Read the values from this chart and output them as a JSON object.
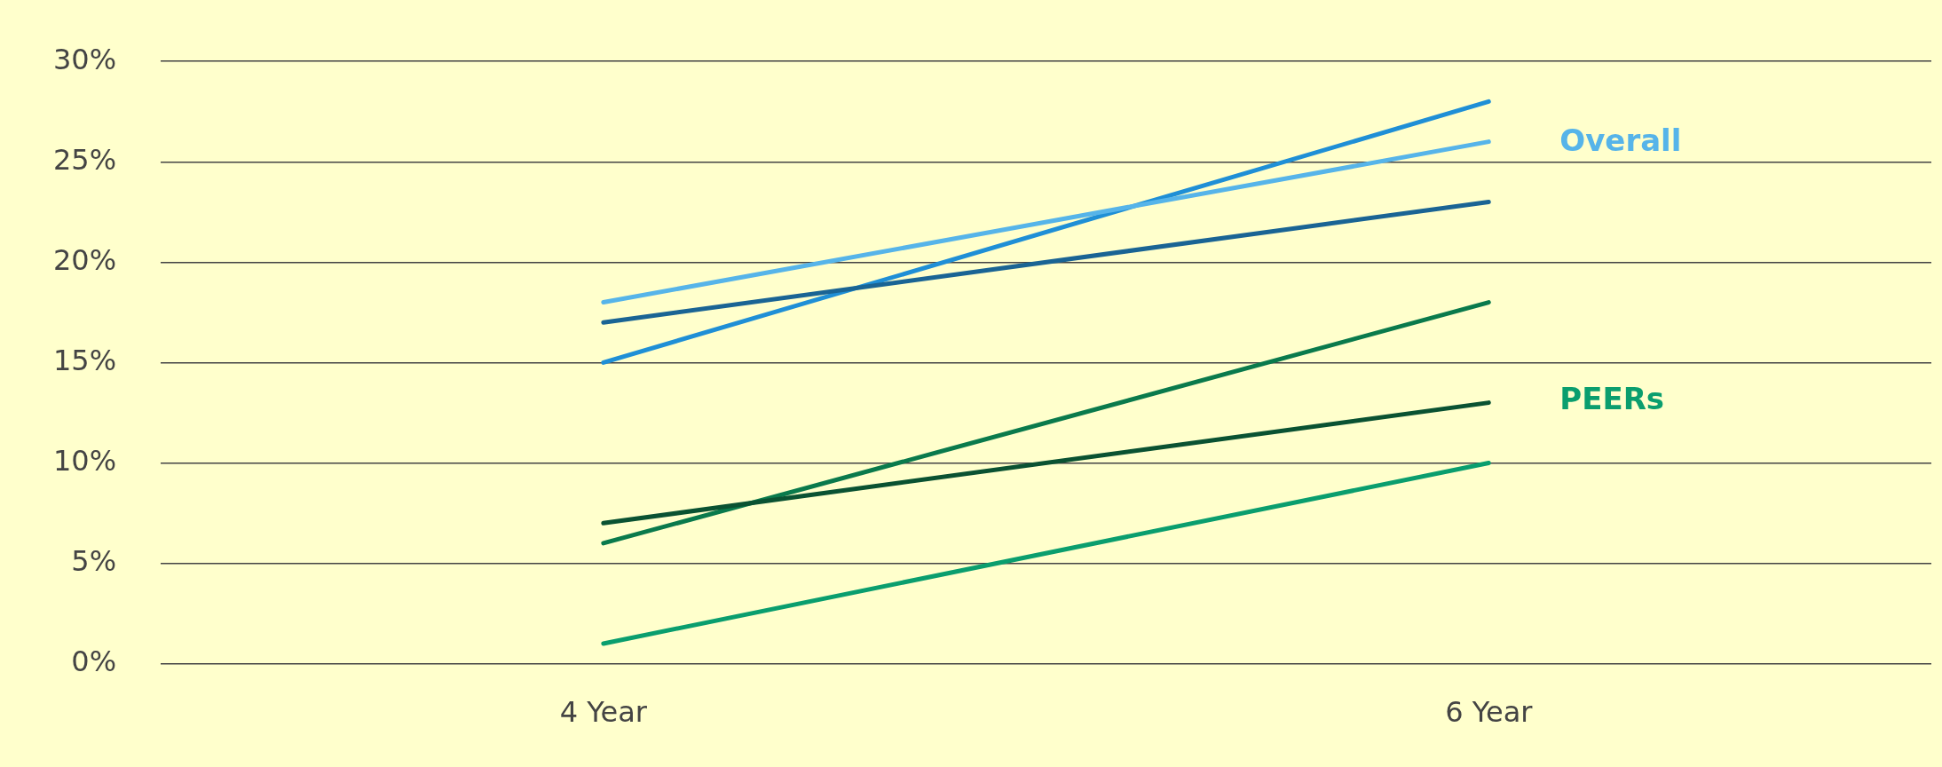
{
  "chart_data": {
    "type": "line",
    "categories": [
      "4 Year",
      "6 Year"
    ],
    "series": [
      {
        "color": "#56b4e9",
        "values": [
          18,
          26
        ]
      },
      {
        "color": "#1a6494",
        "values": [
          17,
          23
        ]
      },
      {
        "color": "#1f8fd6",
        "values": [
          15,
          28
        ]
      },
      {
        "color": "#0a5232",
        "values": [
          7,
          13
        ]
      },
      {
        "color": "#0a7a4c",
        "values": [
          6,
          18
        ]
      },
      {
        "color": "#0a9e6e",
        "values": [
          1,
          10
        ]
      }
    ],
    "ylim": [
      0,
      30
    ],
    "yticks": [
      {
        "value": 0,
        "label": "0%"
      },
      {
        "value": 5,
        "label": "5%"
      },
      {
        "value": 10,
        "label": "10%"
      },
      {
        "value": 15,
        "label": "15%"
      },
      {
        "value": 20,
        "label": "20%"
      },
      {
        "value": 25,
        "label": "25%"
      },
      {
        "value": 30,
        "label": "30%"
      }
    ],
    "grid": "y",
    "legend": false,
    "marker": "none",
    "line_style": "solid",
    "annotations": [
      "Overall",
      "PEERs"
    ]
  }
}
